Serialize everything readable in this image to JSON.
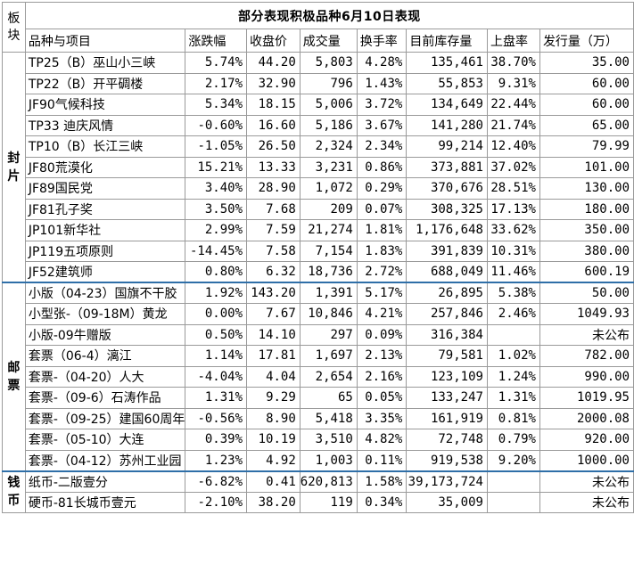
{
  "title": "部分表现积极品种6月10日表现",
  "corner_label": "板块",
  "headers": [
    "品种与项目",
    "涨跌幅",
    "收盘价",
    "成交量",
    "换手率",
    "目前库存量",
    "上盘率",
    "发行量（万）"
  ],
  "categories": [
    {
      "label": "封片"
    },
    {
      "label": "邮票"
    },
    {
      "label": "钱币"
    }
  ],
  "rows": [
    {
      "name": "TP25（B）巫山小三峡",
      "change": "5.74%",
      "dir": "up",
      "close": "44.20",
      "volume": "5,803",
      "turnover": "4.28%",
      "inventory": "135,461",
      "listing": "38.70%",
      "issue": "35.00"
    },
    {
      "name": "TP22（B）开平碉楼",
      "change": "2.17%",
      "dir": "up",
      "close": "32.90",
      "volume": "796",
      "turnover": "1.43%",
      "inventory": "55,853",
      "listing": "9.31%",
      "issue": "60.00"
    },
    {
      "name": "JF90气候科技",
      "change": "5.34%",
      "dir": "up",
      "close": "18.15",
      "volume": "5,006",
      "turnover": "3.72%",
      "inventory": "134,649",
      "listing": "22.44%",
      "issue": "60.00"
    },
    {
      "name": "TP33 迪庆风情",
      "change": "-0.60%",
      "dir": "down",
      "close": "16.60",
      "volume": "5,186",
      "turnover": "3.67%",
      "inventory": "141,280",
      "listing": "21.74%",
      "issue": "65.00"
    },
    {
      "name": "TP10（B）长江三峡",
      "change": "-1.05%",
      "dir": "down",
      "close": "26.50",
      "volume": "2,324",
      "turnover": "2.34%",
      "inventory": "99,214",
      "listing": "12.40%",
      "issue": "79.99"
    },
    {
      "name": "JF80荒漠化",
      "change": "15.21%",
      "dir": "up",
      "close": "13.33",
      "volume": "3,231",
      "turnover": "0.86%",
      "inventory": "373,881",
      "listing": "37.02%",
      "issue": "101.00"
    },
    {
      "name": "JF89国民党",
      "change": "3.40%",
      "dir": "up",
      "close": "28.90",
      "volume": "1,072",
      "turnover": "0.29%",
      "inventory": "370,676",
      "listing": "28.51%",
      "issue": "130.00"
    },
    {
      "name": "JF81孔子奖",
      "change": "3.50%",
      "dir": "up",
      "close": "7.68",
      "volume": "209",
      "turnover": "0.07%",
      "inventory": "308,325",
      "listing": "17.13%",
      "issue": "180.00"
    },
    {
      "name": "JP101新华社",
      "change": "2.99%",
      "dir": "up",
      "close": "7.59",
      "volume": "21,274",
      "turnover": "1.81%",
      "inventory": "1,176,648",
      "listing": "33.62%",
      "issue": "350.00"
    },
    {
      "name": "JP119五项原则",
      "change": "-14.45%",
      "dir": "down",
      "close": "7.58",
      "volume": "7,154",
      "turnover": "1.83%",
      "inventory": "391,839",
      "listing": "10.31%",
      "issue": "380.00"
    },
    {
      "name": "JF52建筑师",
      "change": "0.80%",
      "dir": "up",
      "close": "6.32",
      "volume": "18,736",
      "turnover": "2.72%",
      "inventory": "688,049",
      "listing": "11.46%",
      "issue": "600.19"
    },
    {
      "name": "小版（04-23）国旗不干胶",
      "change": "1.92%",
      "dir": "up",
      "close": "143.20",
      "volume": "1,391",
      "turnover": "5.17%",
      "inventory": "26,895",
      "listing": "5.38%",
      "issue": "50.00"
    },
    {
      "name": "小型张-（09-18M）黄龙",
      "change": "0.00%",
      "dir": "flat",
      "close": "7.67",
      "volume": "10,846",
      "turnover": "4.21%",
      "inventory": "257,846",
      "listing": "2.46%",
      "issue": "1049.93"
    },
    {
      "name": "小版-09牛赠版",
      "change": "0.50%",
      "dir": "up",
      "close": "14.10",
      "volume": "297",
      "turnover": "0.09%",
      "inventory": "316,384",
      "listing": "",
      "issue": "未公布"
    },
    {
      "name": "套票（06-4）漓江",
      "change": "1.14%",
      "dir": "up",
      "close": "17.81",
      "volume": "1,697",
      "turnover": "2.13%",
      "inventory": "79,581",
      "listing": "1.02%",
      "issue": "782.00"
    },
    {
      "name": "套票-（04-20）人大",
      "change": "-4.04%",
      "dir": "down",
      "close": "4.04",
      "volume": "2,654",
      "turnover": "2.16%",
      "inventory": "123,109",
      "listing": "1.24%",
      "issue": "990.00"
    },
    {
      "name": "套票-（09-6）石涛作品",
      "change": "1.31%",
      "dir": "up",
      "close": "9.29",
      "volume": "65",
      "turnover": "0.05%",
      "inventory": "133,247",
      "listing": "1.31%",
      "issue": "1019.95"
    },
    {
      "name": "套票-（09-25）建国60周年",
      "change": "-0.56%",
      "dir": "down",
      "close": "8.90",
      "volume": "5,418",
      "turnover": "3.35%",
      "inventory": "161,919",
      "listing": "0.81%",
      "issue": "2000.08"
    },
    {
      "name": "套票-（05-10）大连",
      "change": "0.39%",
      "dir": "up",
      "close": "10.19",
      "volume": "3,510",
      "turnover": "4.82%",
      "inventory": "72,748",
      "listing": "0.79%",
      "issue": "920.00"
    },
    {
      "name": "套票-（04-12）苏州工业园",
      "change": "1.23%",
      "dir": "up",
      "close": "4.92",
      "volume": "1,003",
      "turnover": "0.11%",
      "inventory": "919,538",
      "listing": "9.20%",
      "issue": "1000.00"
    },
    {
      "name": "纸币-二版壹分",
      "change": "-6.82%",
      "dir": "down",
      "close": "0.41",
      "volume": "620,813",
      "turnover": "1.58%",
      "inventory": "39,173,724",
      "listing": "",
      "issue": "未公布"
    },
    {
      "name": "硬币-81长城币壹元",
      "change": "-2.10%",
      "dir": "down",
      "close": "38.20",
      "volume": "119",
      "turnover": "0.34%",
      "inventory": "35,009",
      "listing": "",
      "issue": "未公布"
    }
  ],
  "colors": {
    "header_blue": "#0a55a8",
    "up_red": "#e8002b",
    "down_green": "#12a060",
    "separator_blue": "#2f6fa8"
  }
}
